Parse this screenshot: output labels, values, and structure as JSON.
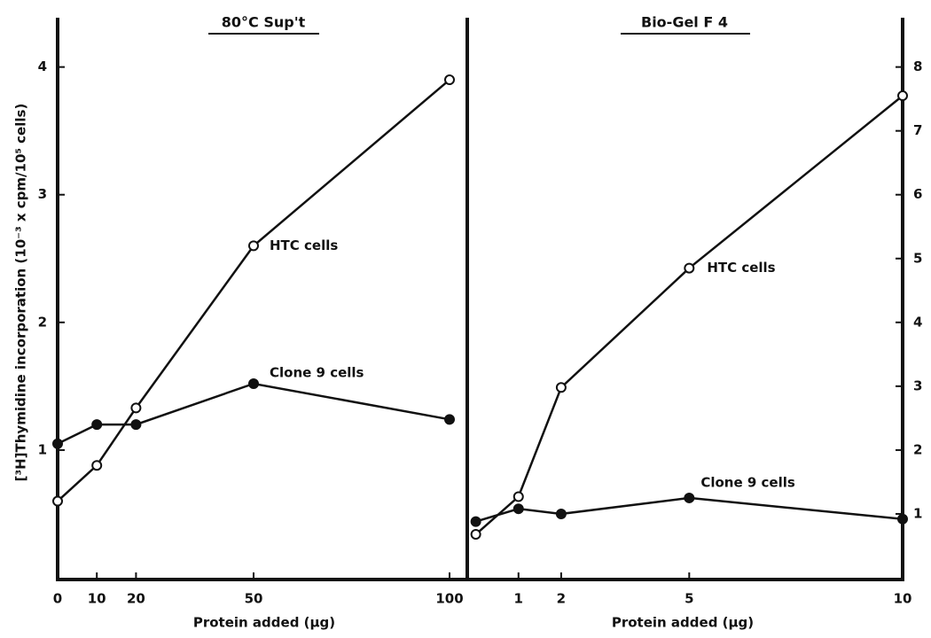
{
  "chart_data": [
    {
      "type": "line",
      "title": "80°C Sup't",
      "y_label": "[³H]Thymidine incorporation (10⁻³ x cpm/10⁵ cells)",
      "x_label": "Protein added (µg)",
      "x": [
        0,
        10,
        20,
        50,
        100
      ],
      "xlim": [
        0,
        100
      ],
      "xticks": [
        0,
        10,
        20,
        50,
        100
      ],
      "ylim": [
        0,
        4.4
      ],
      "yticks": [
        1,
        2,
        3,
        4
      ],
      "series": [
        {
          "name": "HTC cells",
          "color": "#111111",
          "marker": "open",
          "values": [
            0.6,
            0.88,
            1.33,
            2.6,
            3.9
          ]
        },
        {
          "name": "Clone 9 cells",
          "color": "#111111",
          "marker": "filled",
          "values": [
            1.05,
            1.2,
            1.2,
            1.52,
            1.24
          ]
        }
      ]
    },
    {
      "type": "line",
      "title": "Bio-Gel F 4",
      "x_label": "Protein added (µg)",
      "x": [
        0,
        1,
        2,
        5,
        10
      ],
      "xlim": [
        -0.2,
        10
      ],
      "xticks": [
        1,
        2,
        5,
        10
      ],
      "y2lim": [
        0,
        8.8
      ],
      "y2ticks": [
        1,
        2,
        3,
        4,
        5,
        6,
        7,
        8
      ],
      "series": [
        {
          "name": "HTC cells",
          "color": "#111111",
          "marker": "open",
          "axis": "y2",
          "values": [
            0.68,
            1.27,
            2.98,
            4.85,
            7.55
          ]
        },
        {
          "name": "Clone 9 cells",
          "color": "#111111",
          "marker": "filled",
          "axis": "y2",
          "values": [
            0.88,
            1.08,
            1.0,
            1.25,
            0.92
          ]
        }
      ]
    }
  ]
}
